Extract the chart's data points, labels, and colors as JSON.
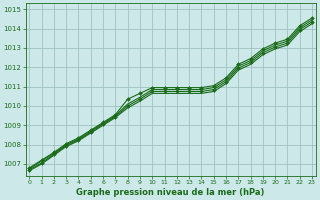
{
  "xlabel": "Graphe pression niveau de la mer (hPa)",
  "bg_color": "#cce8e8",
  "line_color": "#1a6b1a",
  "grid_color": "#99bbbb",
  "ylim": [
    1006.4,
    1015.3
  ],
  "xlim": [
    -0.3,
    23.3
  ],
  "yticks": [
    1007,
    1008,
    1009,
    1010,
    1011,
    1012,
    1013,
    1014,
    1015
  ],
  "xticks": [
    0,
    1,
    2,
    3,
    4,
    5,
    6,
    7,
    8,
    9,
    10,
    11,
    12,
    13,
    14,
    15,
    16,
    17,
    18,
    19,
    20,
    21,
    22,
    23
  ],
  "series": [
    [
      1006.8,
      1007.2,
      1007.6,
      1008.05,
      1008.35,
      1008.75,
      1009.15,
      1009.55,
      1010.35,
      1010.65,
      1010.95,
      1010.95,
      1010.95,
      1010.95,
      1010.95,
      1011.05,
      1011.45,
      1012.15,
      1012.45,
      1012.95,
      1013.25,
      1013.45,
      1014.15,
      1014.55
    ],
    [
      1006.75,
      1007.15,
      1007.55,
      1008.0,
      1008.3,
      1008.7,
      1009.1,
      1009.5,
      1010.1,
      1010.45,
      1010.85,
      1010.85,
      1010.85,
      1010.85,
      1010.85,
      1010.95,
      1011.35,
      1012.05,
      1012.35,
      1012.85,
      1013.15,
      1013.35,
      1014.05,
      1014.45
    ],
    [
      1006.7,
      1007.05,
      1007.5,
      1007.95,
      1008.25,
      1008.65,
      1009.05,
      1009.45,
      1010.0,
      1010.35,
      1010.75,
      1010.75,
      1010.75,
      1010.75,
      1010.75,
      1010.85,
      1011.25,
      1011.95,
      1012.25,
      1012.75,
      1013.05,
      1013.25,
      1013.95,
      1014.35
    ],
    [
      1006.65,
      1007.0,
      1007.45,
      1007.9,
      1008.2,
      1008.6,
      1009.0,
      1009.4,
      1009.9,
      1010.25,
      1010.65,
      1010.65,
      1010.65,
      1010.65,
      1010.65,
      1010.75,
      1011.15,
      1011.85,
      1012.15,
      1012.65,
      1012.95,
      1013.15,
      1013.85,
      1014.25
    ]
  ],
  "marker_indices": [
    0,
    2
  ],
  "figsize": [
    3.2,
    2.0
  ],
  "dpi": 100
}
